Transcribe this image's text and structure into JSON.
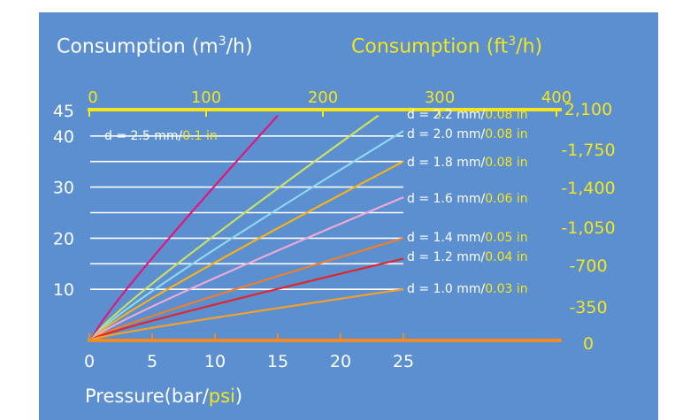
{
  "chart_data": {
    "type": "line",
    "titles": {
      "left_prefix": "Consumption (m",
      "left_sup": "3",
      "left_suffix": "/h)",
      "right_prefix": "Consumption (ft",
      "right_sup": "3",
      "right_suffix": "/h)"
    },
    "xlabel_prefix": "Pressure(bar/",
    "xlabel_psi": "psi",
    "xlabel_suffix": ")",
    "x_axis_bottom": {
      "ticks": [
        "0",
        "5",
        "10",
        "15",
        "20",
        "25"
      ],
      "values": [
        0,
        5,
        10,
        15,
        20,
        25
      ],
      "xlim": [
        0,
        25
      ]
    },
    "x_axis_top": {
      "ticks": [
        "0",
        "100",
        "200",
        "300",
        "400"
      ],
      "values": [
        0,
        100,
        200,
        300,
        400
      ]
    },
    "y_axis_left": {
      "ticks": [
        "10",
        "20",
        "30",
        "40",
        "45"
      ],
      "values": [
        10,
        20,
        30,
        40,
        45
      ],
      "ylim": [
        0,
        45
      ]
    },
    "y_axis_right": {
      "ticks": [
        "2,100",
        "1,750",
        "1,400",
        "1,050",
        "700",
        "350",
        "0"
      ],
      "values": [
        2100,
        1750,
        1400,
        1050,
        700,
        350,
        0
      ]
    },
    "grid": "horizontal",
    "series": [
      {
        "name": "d = 2.5 mm/0.1 in",
        "mm": "d = 2.5 mm/",
        "inch": "0.1 in",
        "color": "#e3157a",
        "x": [
          0,
          15
        ],
        "y": [
          0,
          44
        ]
      },
      {
        "name": "d = 2.2 mm/0.08 in",
        "mm": "d = 2.2 mm/",
        "inch": "0.08 in",
        "color": "#c9e066",
        "x": [
          0,
          23
        ],
        "y": [
          0,
          44
        ]
      },
      {
        "name": "d = 2.0 mm/0.08 in",
        "mm": "d = 2.0 mm/",
        "inch": "0.08 in",
        "color": "#8fd8f0",
        "x": [
          0,
          25
        ],
        "y": [
          0,
          41
        ]
      },
      {
        "name": "d = 1.8 mm/0.08 in",
        "mm": "d = 1.8 mm/",
        "inch": "0.08 in",
        "color": "#f6b21a",
        "x": [
          0,
          25
        ],
        "y": [
          0,
          35
        ]
      },
      {
        "name": "d = 1.6 mm/0.06 in",
        "mm": "d = 1.6 mm/",
        "inch": "0.06 in",
        "color": "#f0a8d6",
        "x": [
          0,
          25
        ],
        "y": [
          0,
          28
        ]
      },
      {
        "name": "d = 1.4 mm/0.05 in",
        "mm": "d = 1.4 mm/",
        "inch": "0.05 in",
        "color": "#f07f2a",
        "x": [
          0,
          25
        ],
        "y": [
          0,
          20
        ]
      },
      {
        "name": "d = 1.2 mm/0.04 in",
        "mm": "d = 1.2 mm/",
        "inch": "0.04 in",
        "color": "#e1262b",
        "x": [
          0,
          25
        ],
        "y": [
          0,
          16
        ]
      },
      {
        "name": "d = 1.0 mm/0.03 in",
        "mm": "d = 1.0 mm/",
        "inch": "0.03 in",
        "color": "#f3a12a",
        "x": [
          0,
          25
        ],
        "y": [
          0,
          10
        ]
      }
    ],
    "colors": {
      "background": "#5b8fd0",
      "top_axis": "#f5e51b",
      "bottom_axis": "#f08a24",
      "grid": "#ffffff",
      "inch_text": "#f5e51b"
    }
  }
}
